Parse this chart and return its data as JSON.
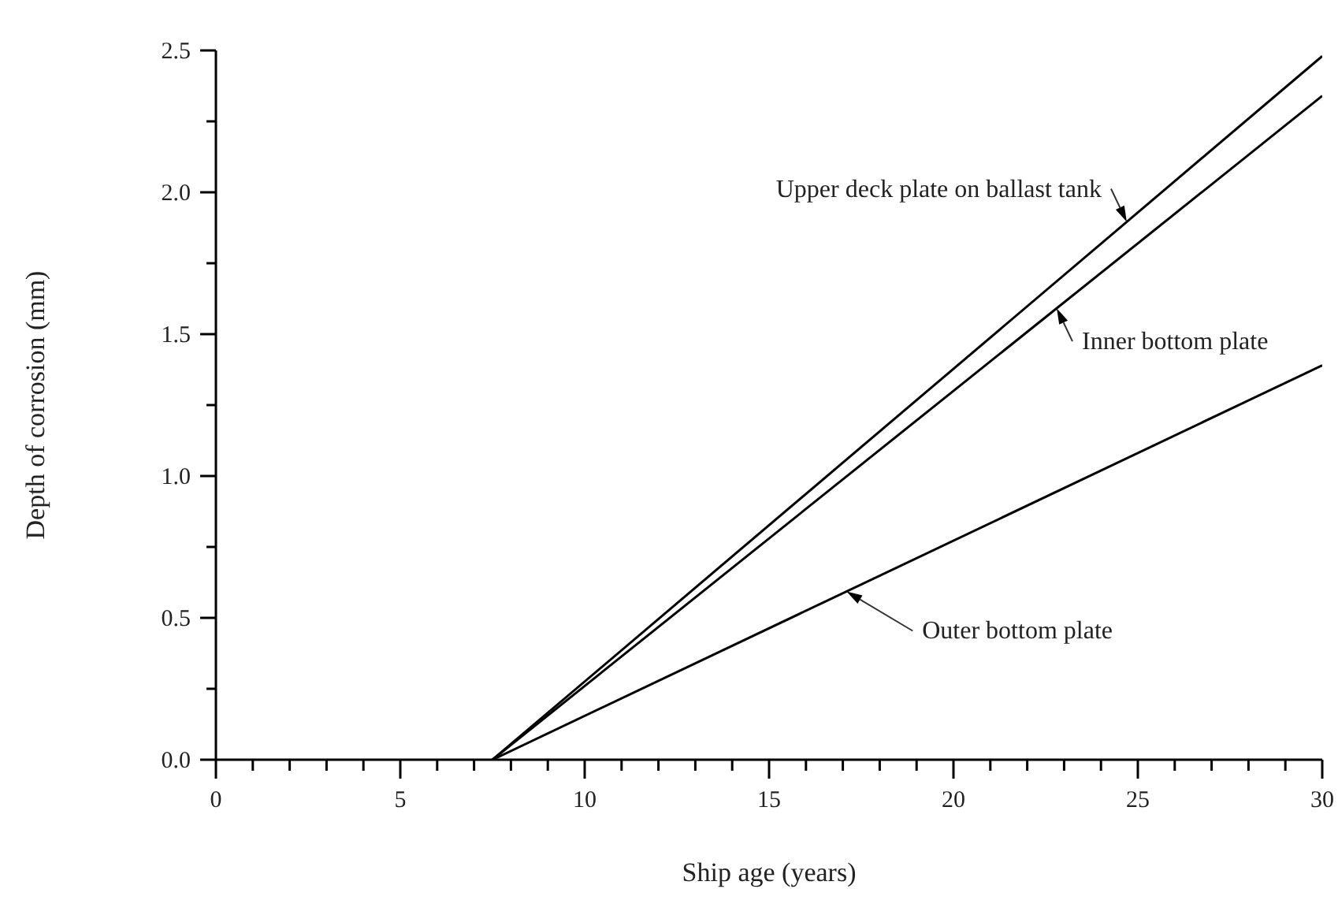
{
  "chart_data": {
    "type": "line",
    "xlabel": "Ship age (years)",
    "ylabel": "Depth of corrosion (mm)",
    "xlim": [
      0,
      30
    ],
    "ylim": [
      0,
      2.5
    ],
    "xticks": [
      0,
      {
        "value": 1,
        "label": null
      },
      {
        "value": 2,
        "label": null
      },
      {
        "value": 3,
        "label": null
      },
      {
        "value": 4,
        "label": null
      },
      5,
      {
        "value": 6,
        "label": null
      },
      {
        "value": 7,
        "label": null
      },
      {
        "value": 8,
        "label": null
      },
      {
        "value": 9,
        "label": null
      },
      10,
      {
        "value": 11,
        "label": null
      },
      {
        "value": 12,
        "label": null
      },
      {
        "value": 13,
        "label": null
      },
      {
        "value": 14,
        "label": null
      },
      15,
      {
        "value": 16,
        "label": null
      },
      {
        "value": 17,
        "label": null
      },
      {
        "value": 18,
        "label": null
      },
      {
        "value": 19,
        "label": null
      },
      20,
      {
        "value": 21,
        "label": null
      },
      {
        "value": 22,
        "label": null
      },
      {
        "value": 23,
        "label": null
      },
      {
        "value": 24,
        "label": null
      },
      25,
      {
        "value": 26,
        "label": null
      },
      {
        "value": 27,
        "label": null
      },
      {
        "value": 28,
        "label": null
      },
      {
        "value": 29,
        "label": null
      },
      30
    ],
    "yticks": [
      {
        "value": 0,
        "label": "0.0"
      },
      {
        "value": 0.25,
        "label": null
      },
      {
        "value": 0.5,
        "label": "0.5"
      },
      {
        "value": 0.75,
        "label": null
      },
      {
        "value": 1,
        "label": "1.0"
      },
      {
        "value": 1.25,
        "label": null
      },
      {
        "value": 1.5,
        "label": "1.5"
      },
      {
        "value": 1.75,
        "label": null
      },
      {
        "value": 2,
        "label": "2.0"
      },
      {
        "value": 2.25,
        "label": null
      },
      {
        "value": 2.5,
        "label": "2.5"
      }
    ],
    "x": [
      7.5,
      30
    ],
    "grid": false,
    "legend": false,
    "marker": "none",
    "line_style": "solid",
    "series": [
      {
        "name": "Upper deck plate on ballast tank",
        "color": "#000000",
        "values": [
          0,
          2.48
        ]
      },
      {
        "name": "Inner bottom plate",
        "color": "#000000",
        "values": [
          0,
          2.34
        ]
      },
      {
        "name": "Outer bottom plate",
        "color": "#000000",
        "values": [
          0,
          1.39
        ]
      }
    ]
  }
}
